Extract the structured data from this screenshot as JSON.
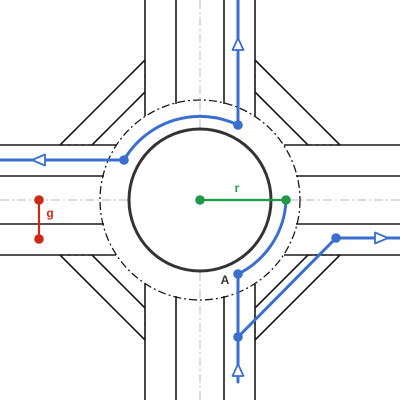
{
  "labels": {
    "radius": "r",
    "gap": "g",
    "entry_point": "A"
  },
  "colors": {
    "background": "#ffffff",
    "road_edge": "#1a1a1a",
    "island": "#333333",
    "centerline": "#bbbbbb",
    "path": "#3a6fd0",
    "radius": "#1f9a48",
    "gap": "#cc2a12"
  },
  "icons": {
    "direction_marker": "open-triangle-arrow"
  }
}
